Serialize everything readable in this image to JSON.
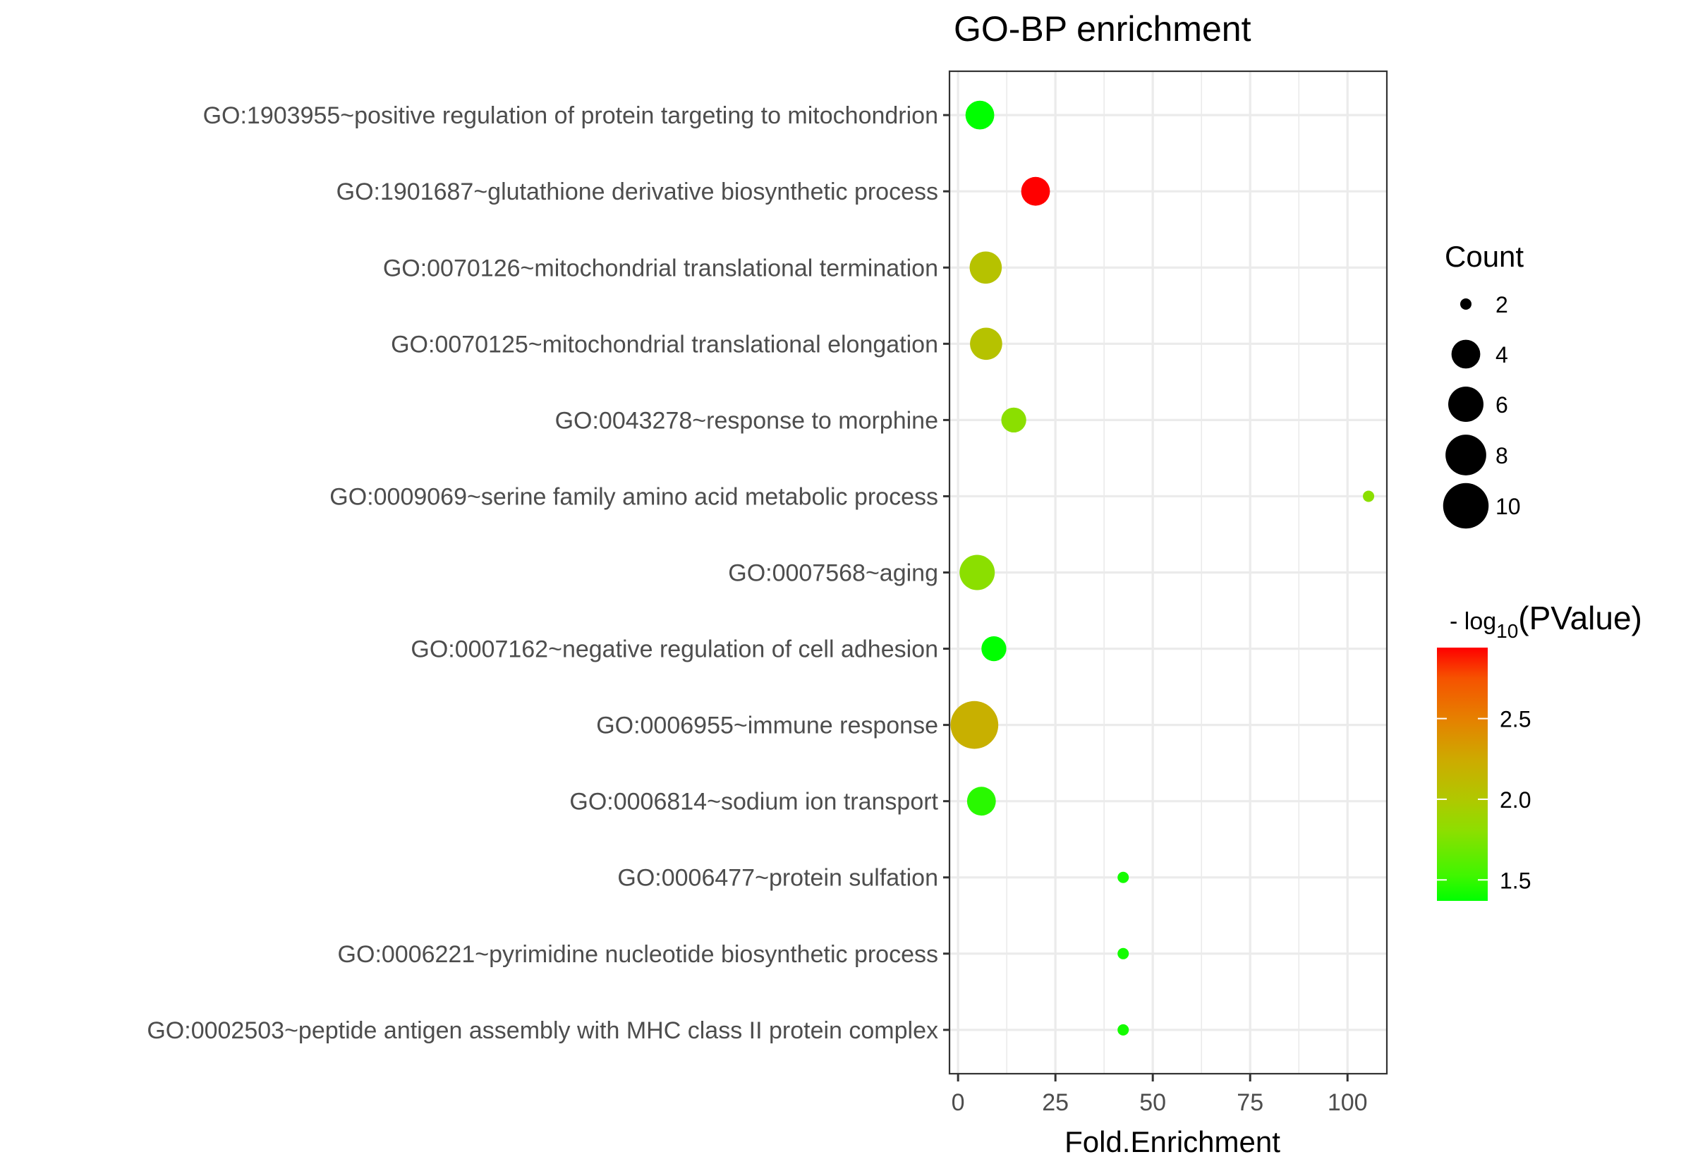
{
  "chart_data": {
    "type": "scatter",
    "subtype": "bubble",
    "title": "GO-BP enrichment",
    "xlabel": "Fold.Enrichment",
    "ylabel": "",
    "xlim": [
      -2.2,
      110.1
    ],
    "x_ticks": [
      0,
      25,
      50,
      75,
      100
    ],
    "x_tick_labels": [
      "0",
      "25",
      "50",
      "75",
      "100"
    ],
    "grid": true,
    "categories": [
      "GO:1903955~positive regulation of protein targeting to mitochondrion",
      "GO:1901687~glutathione derivative biosynthetic process",
      "GO:0070126~mitochondrial translational termination",
      "GO:0070125~mitochondrial translational elongation",
      "GO:0043278~response to morphine",
      "GO:0009069~serine family amino acid metabolic process",
      "GO:0007568~aging",
      "GO:0007162~negative regulation of cell adhesion",
      "GO:0006955~immune response",
      "GO:0006814~sodium ion transport",
      "GO:0006477~protein sulfation",
      "GO:0006221~pyrimidine nucleotide biosynthetic process",
      "GO:0002503~peptide antigen assembly with MHC class II protein complex"
    ],
    "points": [
      {
        "term": "GO:1903955~positive regulation of protein targeting to mitochondrion",
        "fold_enrichment": 5.6,
        "count": 4,
        "neg_log10_pvalue": 1.37
      },
      {
        "term": "GO:1901687~glutathione derivative biosynthetic process",
        "fold_enrichment": 19.9,
        "count": 4,
        "neg_log10_pvalue": 2.94
      },
      {
        "term": "GO:0070126~mitochondrial translational termination",
        "fold_enrichment": 7.1,
        "count": 5,
        "neg_log10_pvalue": 2.05
      },
      {
        "term": "GO:0070125~mitochondrial translational elongation",
        "fold_enrichment": 7.2,
        "count": 5,
        "neg_log10_pvalue": 2.05
      },
      {
        "term": "GO:0043278~response to morphine",
        "fold_enrichment": 14.3,
        "count": 3,
        "neg_log10_pvalue": 1.8
      },
      {
        "term": "GO:0009069~serine family amino acid metabolic process",
        "fold_enrichment": 105.4,
        "count": 2,
        "neg_log10_pvalue": 1.8
      },
      {
        "term": "GO:0007568~aging",
        "fold_enrichment": 4.9,
        "count": 6,
        "neg_log10_pvalue": 1.8
      },
      {
        "term": "GO:0007162~negative regulation of cell adhesion",
        "fold_enrichment": 9.2,
        "count": 3,
        "neg_log10_pvalue": 1.37
      },
      {
        "term": "GO:0006955~immune response",
        "fold_enrichment": 4.2,
        "count": 11,
        "neg_log10_pvalue": 2.2
      },
      {
        "term": "GO:0006814~sodium ion transport",
        "fold_enrichment": 6.0,
        "count": 4,
        "neg_log10_pvalue": 1.47
      },
      {
        "term": "GO:0006477~protein sulfation",
        "fold_enrichment": 42.4,
        "count": 2,
        "neg_log10_pvalue": 1.42
      },
      {
        "term": "GO:0006221~pyrimidine nucleotide biosynthetic process",
        "fold_enrichment": 42.4,
        "count": 2,
        "neg_log10_pvalue": 1.42
      },
      {
        "term": "GO:0002503~peptide antigen assembly with MHC class II protein complex",
        "fold_enrichment": 42.4,
        "count": 2,
        "neg_log10_pvalue": 1.42
      }
    ],
    "size_legend": {
      "title": "Count",
      "values": [
        2,
        4,
        6,
        8,
        10
      ],
      "labels": [
        "2",
        "4",
        "6",
        "8",
        "10"
      ]
    },
    "color_legend": {
      "title_prefix": "- log",
      "title_subscript": "10",
      "title_suffix": "(PValue)",
      "range": [
        1.37,
        2.94
      ],
      "ticks": [
        1.5,
        2.0,
        2.5
      ],
      "tick_labels": [
        "1.5",
        "2.0",
        "2.5"
      ],
      "low_color": "#00FF00",
      "high_color": "#FF0000",
      "placement": "right"
    },
    "legend_placement": "right"
  }
}
